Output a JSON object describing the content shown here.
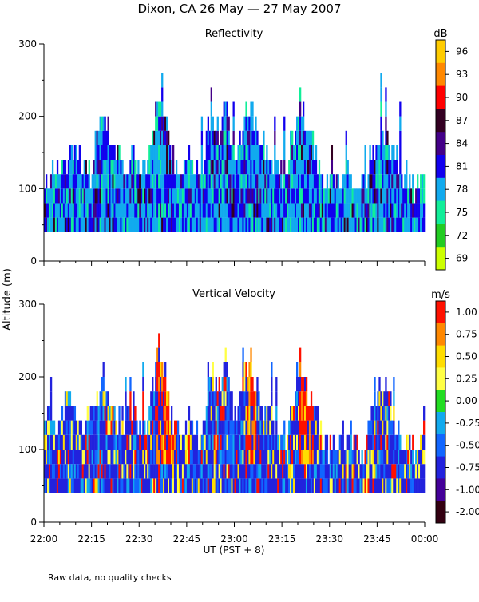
{
  "title": "Dixon, CA 26 May — 27 May 2007",
  "ylabel": "Altitude (m)",
  "xlabel": "UT  (PST + 8)",
  "footnote": "Raw data, no quality checks",
  "xticks": [
    "22:00",
    "22:15",
    "22:30",
    "22:45",
    "23:00",
    "23:15",
    "23:30",
    "23:45",
    "00:00"
  ],
  "chart_data": [
    {
      "type": "heatmap",
      "title": "Reflectivity",
      "x_range_minutes": [
        0,
        120
      ],
      "ylim": [
        0,
        300
      ],
      "yticks": [
        "0",
        "100",
        "200",
        "300"
      ],
      "colorbar_unit": "dB",
      "colorbar_labels": [
        "96",
        "93",
        "90",
        "87",
        "84",
        "81",
        "78",
        "75",
        "72",
        "69"
      ],
      "colorbar_colors": [
        "#ffcc00",
        "#ff8800",
        "#ff0000",
        "#330022",
        "#440088",
        "#1100ee",
        "#11aaee",
        "#11ee99",
        "#22cc22",
        "#ccff00"
      ],
      "data_floor_m": 40,
      "profile_top_m": [
        [
          0,
          100
        ],
        [
          5,
          140
        ],
        [
          10,
          140
        ],
        [
          15,
          120
        ],
        [
          17,
          180
        ],
        [
          19,
          200
        ],
        [
          22,
          140
        ],
        [
          28,
          140
        ],
        [
          32,
          120
        ],
        [
          36,
          240
        ],
        [
          38,
          200
        ],
        [
          40,
          140
        ],
        [
          43,
          120
        ],
        [
          46,
          140
        ],
        [
          50,
          120
        ],
        [
          52,
          200
        ],
        [
          55,
          180
        ],
        [
          57,
          220
        ],
        [
          60,
          140
        ],
        [
          63,
          200
        ],
        [
          65,
          220
        ],
        [
          68,
          160
        ],
        [
          72,
          140
        ],
        [
          76,
          120
        ],
        [
          80,
          220
        ],
        [
          83,
          180
        ],
        [
          86,
          140
        ],
        [
          90,
          100
        ],
        [
          95,
          120
        ],
        [
          100,
          100
        ],
        [
          105,
          180
        ],
        [
          108,
          180
        ],
        [
          112,
          120
        ],
        [
          116,
          100
        ],
        [
          120,
          120
        ]
      ]
    },
    {
      "type": "heatmap",
      "title": "Vertical Velocity",
      "x_range_minutes": [
        0,
        120
      ],
      "ylim": [
        0,
        300
      ],
      "yticks": [
        "0",
        "100",
        "200",
        "300"
      ],
      "colorbar_unit": "m/s",
      "colorbar_labels": [
        "1.00",
        "0.75",
        "0.50",
        "0.25",
        "0.00",
        "-0.25",
        "-0.50",
        "-0.75",
        "-1.00",
        "-2.00"
      ],
      "colorbar_colors": [
        "#ff1100",
        "#ff8800",
        "#ffdd00",
        "#ffff44",
        "#22dd22",
        "#11aaee",
        "#1166ff",
        "#2222dd",
        "#440099",
        "#330011"
      ],
      "data_floor_m": 40,
      "profile_top_m": [
        [
          0,
          140
        ],
        [
          5,
          140
        ],
        [
          8,
          180
        ],
        [
          12,
          120
        ],
        [
          17,
          180
        ],
        [
          19,
          200
        ],
        [
          22,
          140
        ],
        [
          28,
          140
        ],
        [
          32,
          120
        ],
        [
          36,
          240
        ],
        [
          38,
          200
        ],
        [
          40,
          140
        ],
        [
          43,
          120
        ],
        [
          46,
          140
        ],
        [
          50,
          120
        ],
        [
          52,
          200
        ],
        [
          55,
          180
        ],
        [
          57,
          220
        ],
        [
          60,
          140
        ],
        [
          63,
          200
        ],
        [
          65,
          220
        ],
        [
          68,
          160
        ],
        [
          72,
          140
        ],
        [
          76,
          120
        ],
        [
          80,
          220
        ],
        [
          83,
          180
        ],
        [
          86,
          140
        ],
        [
          90,
          100
        ],
        [
          95,
          120
        ],
        [
          100,
          100
        ],
        [
          105,
          180
        ],
        [
          108,
          180
        ],
        [
          112,
          120
        ],
        [
          116,
          100
        ],
        [
          120,
          140
        ]
      ]
    }
  ]
}
